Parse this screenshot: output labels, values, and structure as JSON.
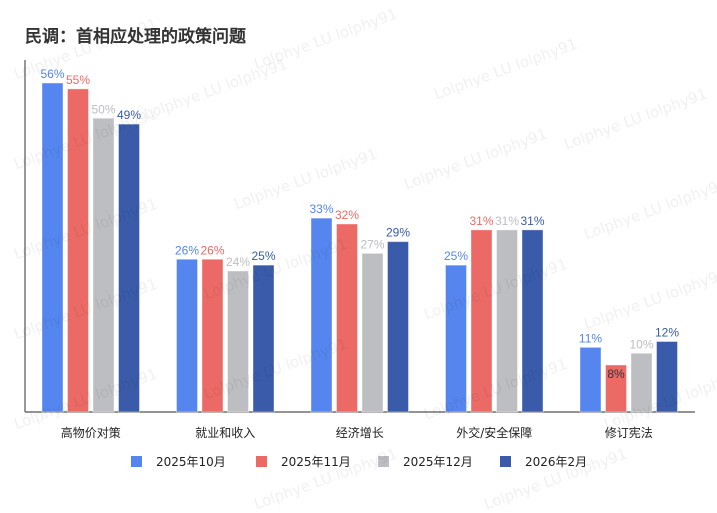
{
  "watermark": "Lolphye LU lolphy91",
  "chart_data": {
    "type": "bar",
    "title": "民调：首相应处理的政策问题",
    "xlabel": "",
    "ylabel": "",
    "ylim": [
      0,
      60
    ],
    "grid": false,
    "legend_position": "bottom",
    "categories": [
      "高物价对策",
      "就业和收入",
      "经济增长",
      "外交/安全保障",
      "修订宪法"
    ],
    "series": [
      {
        "name": "2025年10月",
        "color": "#5585EE",
        "values": [
          56,
          26,
          33,
          25,
          11
        ]
      },
      {
        "name": "2025年11月",
        "color": "#EB6A66",
        "values": [
          55,
          26,
          32,
          31,
          8
        ]
      },
      {
        "name": "2025年12月",
        "color": "#BCBEC2",
        "values": [
          50,
          24,
          27,
          31,
          10
        ]
      },
      {
        "name": "2026年2月",
        "color": "#3A5BA9",
        "values": [
          49,
          25,
          29,
          31,
          12
        ]
      }
    ],
    "value_suffix": "%"
  }
}
